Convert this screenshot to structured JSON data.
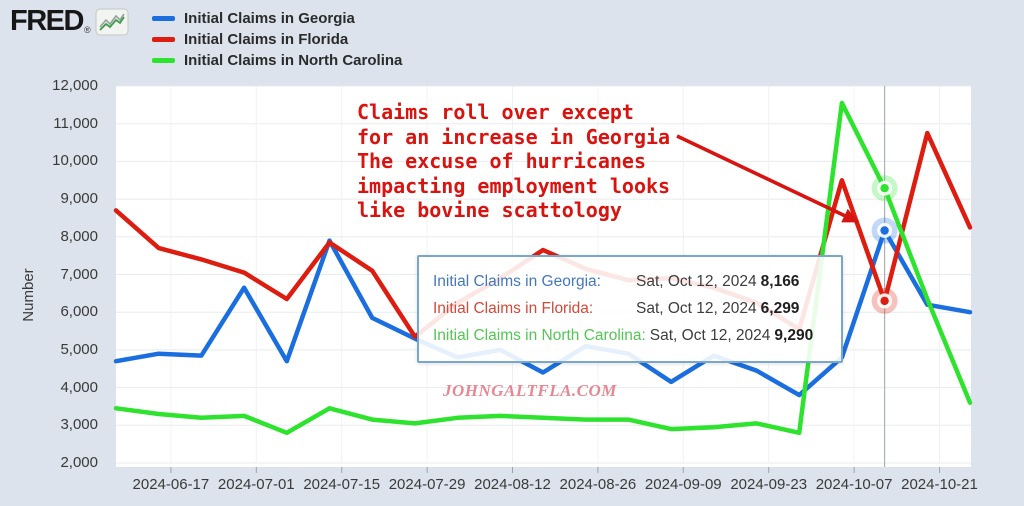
{
  "page": {
    "background": "#dce3ec",
    "plot_background": "#ffffff"
  },
  "logo": {
    "text": "FRED",
    "registered": "®"
  },
  "legend": {
    "items": [
      {
        "label": "Initial Claims in Georgia",
        "color": "#1b6ede"
      },
      {
        "label": "Initial Claims in Florida",
        "color": "#dc1d10"
      },
      {
        "label": "Initial Claims in North Carolina",
        "color": "#2ee32e"
      }
    ]
  },
  "y_axis": {
    "title": "Number",
    "ticks": [
      "12,000",
      "11,000",
      "10,000",
      "9,000",
      "8,000",
      "7,000",
      "6,000",
      "5,000",
      "4,000",
      "3,000",
      "2,000"
    ]
  },
  "x_axis": {
    "labels": [
      "2024-06-17",
      "2024-07-01",
      "2024-07-15",
      "2024-07-29",
      "2024-08-12",
      "2024-08-26",
      "2024-09-09",
      "2024-09-23",
      "2024-10-07",
      "2024-10-21"
    ]
  },
  "annotation": {
    "lines": [
      "Claims roll over except",
      "for an increase in Georgia",
      "The excuse of hurricanes",
      "impacting employment looks",
      "like bovine scattology"
    ],
    "color": "#d81410"
  },
  "watermark": {
    "text": "JOHNGALTFLA.COM",
    "color": "#e16b7a"
  },
  "tooltip": {
    "border_color": "#7aa6c8",
    "rows": [
      {
        "label": "Initial Claims in Georgia:",
        "date": "Sat, Oct 12, 2024",
        "value": "8,166",
        "color": "#4378bd"
      },
      {
        "label": "Initial Claims in Florida:",
        "date": "Sat, Oct 12, 2024",
        "value": "6,299",
        "color": "#d04a3a"
      },
      {
        "label": "Initial Claims in North Carolina:",
        "date": "Sat, Oct 12, 2024",
        "value": "9,290",
        "color": "#53c653"
      }
    ]
  },
  "chart_data": {
    "type": "line",
    "x": [
      "2024-06-08",
      "2024-06-15",
      "2024-06-22",
      "2024-06-29",
      "2024-07-06",
      "2024-07-13",
      "2024-07-20",
      "2024-07-27",
      "2024-08-03",
      "2024-08-10",
      "2024-08-17",
      "2024-08-24",
      "2024-08-31",
      "2024-09-07",
      "2024-09-14",
      "2024-09-21",
      "2024-09-28",
      "2024-10-05",
      "2024-10-12",
      "2024-10-19",
      "2024-10-26"
    ],
    "series": [
      {
        "name": "Initial Claims in Georgia",
        "color": "#1b6ede",
        "values": [
          4700,
          4900,
          4850,
          6650,
          4700,
          7900,
          5850,
          5300,
          4800,
          5000,
          4400,
          5100,
          4900,
          4150,
          4850,
          4450,
          3800,
          4800,
          8166,
          6200,
          6000
        ]
      },
      {
        "name": "Initial Claims in Florida",
        "color": "#dc1d10",
        "values": [
          8700,
          7700,
          7400,
          7050,
          6350,
          7850,
          7100,
          5350,
          6250,
          6900,
          7650,
          7150,
          6850,
          6900,
          6650,
          6250,
          5550,
          9500,
          6299,
          10750,
          8250
        ]
      },
      {
        "name": "Initial Claims in North Carolina",
        "color": "#2ee32e",
        "values": [
          3450,
          3300,
          3200,
          3250,
          2800,
          3450,
          3150,
          3050,
          3200,
          3250,
          3200,
          3150,
          3150,
          2900,
          2950,
          3050,
          2800,
          11550,
          9290,
          6350,
          3600
        ]
      }
    ],
    "title": "",
    "xlabel": "",
    "ylabel": "Number",
    "ylim": [
      2000,
      12000
    ],
    "grid": true,
    "legend_position": "top-left",
    "highlight_index": 18,
    "highlight_date": "2024-10-12",
    "highlight_values": {
      "georgia": 8166,
      "florida": 6299,
      "north_carolina": 9290
    }
  }
}
